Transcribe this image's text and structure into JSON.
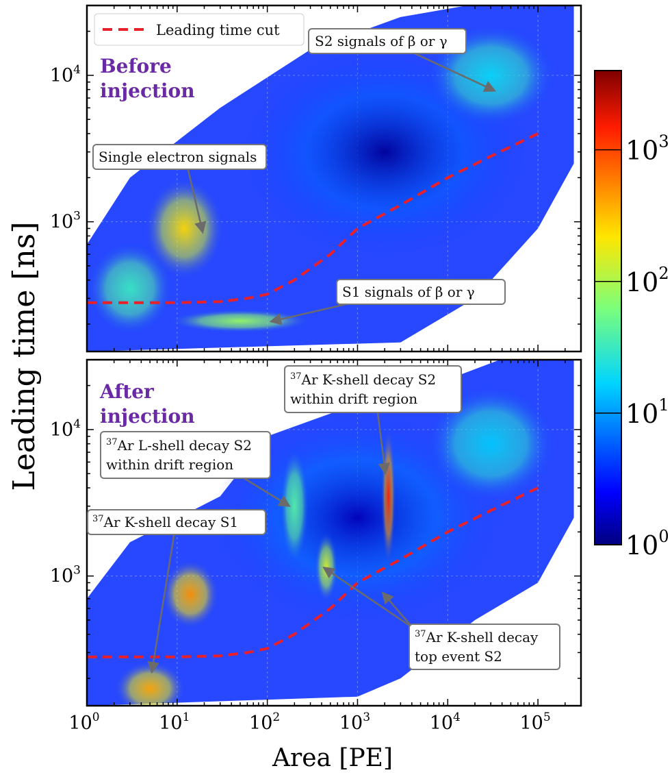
{
  "colors": {
    "panel_label": "#6a2aa6",
    "cut_line": "#e8202a",
    "arrow": "#6b6b6b",
    "box_border": "#777777",
    "background_level": "#0033ff"
  },
  "chart_data": {
    "type": "heatmap",
    "xlabel": "Area [PE]",
    "ylabel": "Leading time [ns]",
    "xscale": "log",
    "yscale": "log",
    "xlim": [
      1,
      300000
    ],
    "ylim": [
      130,
      30000
    ],
    "x_ticks": [
      {
        "base": "10",
        "exp": "0",
        "value": 1
      },
      {
        "base": "10",
        "exp": "1",
        "value": 10
      },
      {
        "base": "10",
        "exp": "2",
        "value": 100
      },
      {
        "base": "10",
        "exp": "3",
        "value": 1000
      },
      {
        "base": "10",
        "exp": "4",
        "value": 10000
      },
      {
        "base": "10",
        "exp": "5",
        "value": 100000
      }
    ],
    "y_ticks": [
      {
        "base": "10",
        "exp": "3",
        "value": 1000
      },
      {
        "base": "10",
        "exp": "4",
        "value": 10000
      }
    ],
    "colorbar": {
      "scale": "log",
      "range": [
        1,
        4000
      ],
      "ticks": [
        {
          "base": "10",
          "exp": "0",
          "value": 1
        },
        {
          "base": "10",
          "exp": "1",
          "value": 10
        },
        {
          "base": "10",
          "exp": "2",
          "value": 100
        },
        {
          "base": "10",
          "exp": "3",
          "value": 1000
        }
      ]
    },
    "legend": {
      "label": "Leading time cut",
      "placement": "top-left"
    },
    "cut_curve": [
      [
        1,
        280
      ],
      [
        10,
        280
      ],
      [
        30,
        285
      ],
      [
        60,
        300
      ],
      [
        100,
        320
      ],
      [
        200,
        400
      ],
      [
        500,
        600
      ],
      [
        1000,
        900
      ],
      [
        3000,
        1300
      ],
      [
        10000,
        2000
      ],
      [
        30000,
        2800
      ],
      [
        100000,
        4000
      ]
    ],
    "panels": [
      {
        "label_line1": "Before",
        "label_line2": "injection",
        "blobs": [
          {
            "x": 2000,
            "y": 3000,
            "sx": 1.0,
            "sy": 0.45,
            "intensity": 1.2,
            "label": "broad background"
          },
          {
            "x": 30000,
            "y": 10000,
            "sx": 0.45,
            "sy": 0.22,
            "intensity": 18,
            "label": "S2 band"
          },
          {
            "x": 12,
            "y": 900,
            "sx": 0.28,
            "sy": 0.22,
            "intensity": 250,
            "label": "single electron"
          },
          {
            "x": 3,
            "y": 350,
            "sx": 0.3,
            "sy": 0.2,
            "intensity": 30,
            "label": "low area"
          },
          {
            "x": 50,
            "y": 210,
            "sx": 0.5,
            "sy": 0.05,
            "intensity": 80,
            "label": "S1 band"
          }
        ],
        "annotations": [
          {
            "line1": "S2 signals of β or γ",
            "line2": ""
          },
          {
            "line1": "Single electron signals",
            "line2": ""
          },
          {
            "line1": "S1 signals of β or γ",
            "line2": ""
          }
        ]
      },
      {
        "label_line1": "After",
        "label_line2": "injection",
        "blobs": [
          {
            "x": 1000,
            "y": 2500,
            "sx": 1.0,
            "sy": 0.45,
            "intensity": 1.5,
            "label": "broad background"
          },
          {
            "x": 2200,
            "y": 3500,
            "sx": 0.05,
            "sy": 0.3,
            "intensity": 1500,
            "label": "K-shell S2 drift"
          },
          {
            "x": 450,
            "y": 1150,
            "sx": 0.08,
            "sy": 0.15,
            "intensity": 150,
            "label": "K-shell top S2"
          },
          {
            "x": 200,
            "y": 3000,
            "sx": 0.1,
            "sy": 0.25,
            "intensity": 40,
            "label": "L-shell S2"
          },
          {
            "x": 14,
            "y": 750,
            "sx": 0.2,
            "sy": 0.15,
            "intensity": 500,
            "label": "electron blob"
          },
          {
            "x": 5,
            "y": 170,
            "sx": 0.25,
            "sy": 0.12,
            "intensity": 400,
            "label": "K-shell S1"
          },
          {
            "x": 30000,
            "y": 8000,
            "sx": 0.45,
            "sy": 0.25,
            "intensity": 15,
            "label": "S2 band"
          }
        ],
        "annotations": [
          {
            "line1": "Ar K-shell decay S2",
            "line2": "within drift region",
            "sup": "37"
          },
          {
            "line1": "Ar L-shell decay S2",
            "line2": "within drift region",
            "sup": "37"
          },
          {
            "line1": "Ar K-shell decay S1",
            "line2": "",
            "sup": "37"
          },
          {
            "line1": "Ar K-shell decay",
            "line2": "top event S2",
            "sup": "37"
          }
        ]
      }
    ]
  }
}
